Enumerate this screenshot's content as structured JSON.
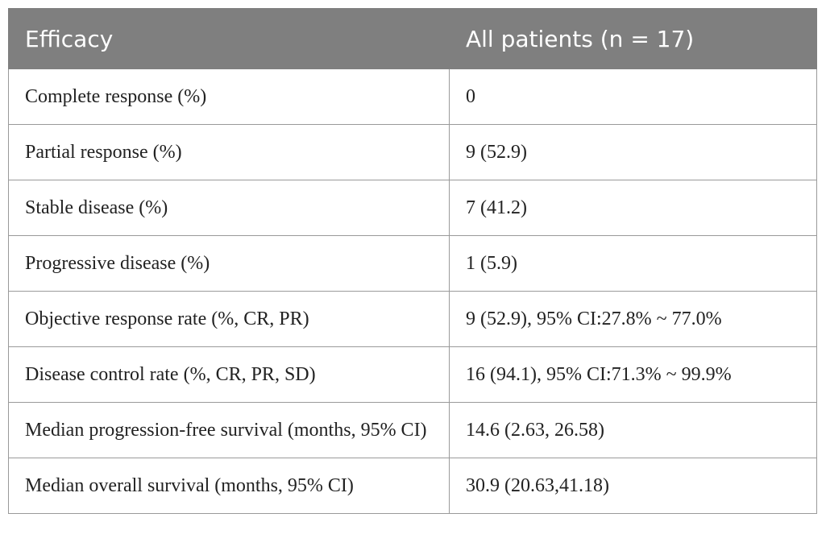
{
  "table": {
    "header": [
      "Efficacy",
      "All patients (n = 17)"
    ],
    "rows": [
      [
        "Complete response (%)",
        "0"
      ],
      [
        "Partial response (%)",
        "9 (52.9)"
      ],
      [
        "Stable disease (%)",
        "7 (41.2)"
      ],
      [
        "Progressive disease (%)",
        "1 (5.9)"
      ],
      [
        "Objective response rate (%, CR, PR)",
        "9 (52.9), 95% CI:27.8% ~ 77.0%"
      ],
      [
        "Disease control rate (%, CR, PR, SD)",
        "16 (94.1), 95% CI:71.3% ~ 99.9%"
      ],
      [
        "Median progression-free survival (months, 95% CI)",
        "14.6 (2.63, 26.58)"
      ],
      [
        "Median overall survival (months, 95% CI)",
        "30.9 (20.63,41.18)"
      ]
    ]
  }
}
